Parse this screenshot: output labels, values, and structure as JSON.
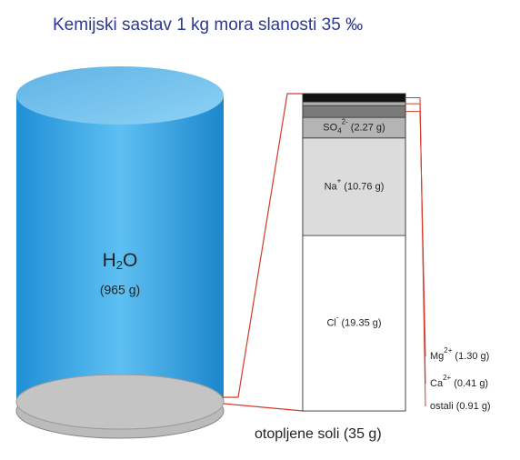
{
  "chart_data": {
    "type": "stacked-column",
    "title": "Kemijski sastav 1 kg mora slanosti 35 ‰",
    "water": {
      "name": "H",
      "sub": "2",
      "name_end": "O",
      "value": 965,
      "value_label": "(965 g)"
    },
    "total": {
      "value": 35,
      "label": "otopljene soli (35 g)"
    },
    "ylim": [
      0,
      35
    ],
    "series": [
      {
        "name": "Cl",
        "sup": "-",
        "values": [
          19.35
        ],
        "value_labels": [
          "(19.35 g)"
        ],
        "color": "#ffffff"
      },
      {
        "name": "Na",
        "sup": "+",
        "values": [
          10.76
        ],
        "value_labels": [
          "(10.76 g)"
        ],
        "color": "#dcdcdc"
      },
      {
        "name": "SO",
        "sub": "4",
        "sup": "2-",
        "values": [
          2.27
        ],
        "value_labels": [
          "(2.27 g)"
        ],
        "color": "#b4b4b4"
      },
      {
        "name": "Mg",
        "sup": "2+",
        "values": [
          1.3
        ],
        "value_labels": [
          "(1.30 g)"
        ],
        "color": "#7a7a7a"
      },
      {
        "name": "Ca",
        "sup": "2+",
        "values": [
          0.41
        ],
        "value_labels": [
          "(0.41 g)"
        ],
        "color": "#b0b0b0"
      },
      {
        "name": "ostali",
        "values": [
          0.91
        ],
        "value_labels": [
          "(0.91 g)"
        ],
        "color": "#111111"
      }
    ]
  }
}
